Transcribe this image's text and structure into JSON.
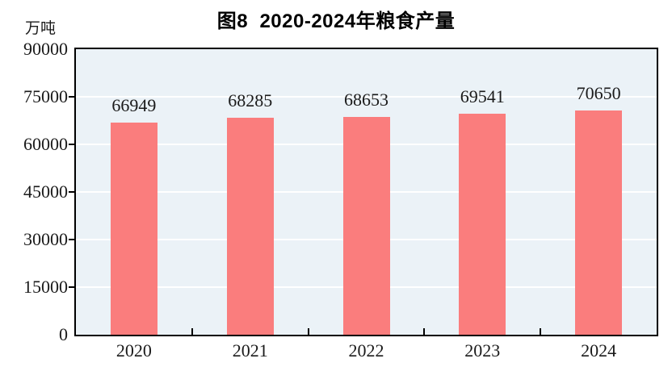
{
  "chart_data": {
    "type": "bar",
    "title": "图8  2020-2024年粮食产量",
    "unit_label": "万吨",
    "categories": [
      "2020",
      "2021",
      "2022",
      "2023",
      "2024"
    ],
    "values": [
      66949,
      68285,
      68653,
      69541,
      70650
    ],
    "value_labels": [
      "66949",
      "68285",
      "68653",
      "69541",
      "70650"
    ],
    "ylabel": "万吨",
    "xlabel": "",
    "ylim": [
      0,
      90000
    ],
    "ytick_interval": 15000,
    "yticks": [
      0,
      15000,
      30000,
      45000,
      60000,
      75000,
      90000
    ],
    "ytick_labels": [
      "0",
      "15000",
      "30000",
      "45000",
      "60000",
      "75000",
      "90000"
    ],
    "grid": true,
    "gridline_orientation": "horizontal",
    "legend_position": "none",
    "colors": {
      "bar": "#fa7d7d",
      "plot_background": "#ebf2f7",
      "gridline": "#ffffff",
      "axis": "#000000",
      "text": "#1a1a1a",
      "title_text": "#000000",
      "page_background": "#ffffff"
    }
  }
}
